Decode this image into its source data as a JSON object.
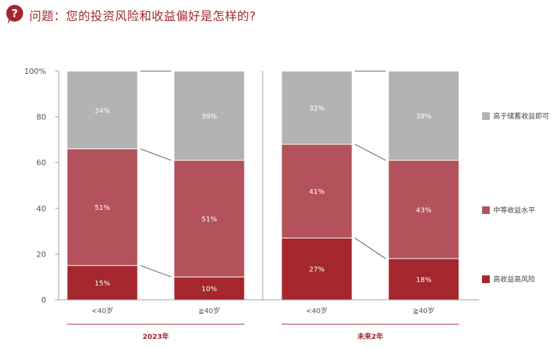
{
  "header": {
    "icon": "question-mark-icon",
    "question": "问题：您的投资风险和收益偏好是怎样的?"
  },
  "colors": {
    "accent": "#a3272d",
    "high": "#a3272d",
    "mid": "#b3525a",
    "low": "#b3b3b3",
    "connector": "#555555",
    "axis": "#999999"
  },
  "chart_data": {
    "type": "bar",
    "stacked": true,
    "percent": true,
    "ylim": [
      0,
      100
    ],
    "yticks": [
      "0",
      "20",
      "40",
      "60",
      "80",
      "100%"
    ],
    "categories": [
      "<40岁",
      "≧40岁",
      "<40岁",
      "≧40岁"
    ],
    "groups": [
      {
        "label": "2023年",
        "bars": [
          0,
          1
        ]
      },
      {
        "label": "未来2年",
        "bars": [
          2,
          3
        ]
      }
    ],
    "series": [
      {
        "name": "高收益高风险",
        "values": [
          15,
          10,
          27,
          18
        ],
        "labels": [
          "15%",
          "10%",
          "27%",
          "18%"
        ]
      },
      {
        "name": "中等收益水平",
        "values": [
          51,
          51,
          41,
          43
        ],
        "labels": [
          "51%",
          "51%",
          "41%",
          "43%"
        ]
      },
      {
        "name": "高于储蓄收益即可",
        "values": [
          34,
          39,
          32,
          39
        ],
        "labels": [
          "34%",
          "39%",
          "32%",
          "39%"
        ]
      }
    ],
    "legend_position": "right",
    "legend_order": [
      2,
      1,
      0
    ],
    "grid": false
  }
}
